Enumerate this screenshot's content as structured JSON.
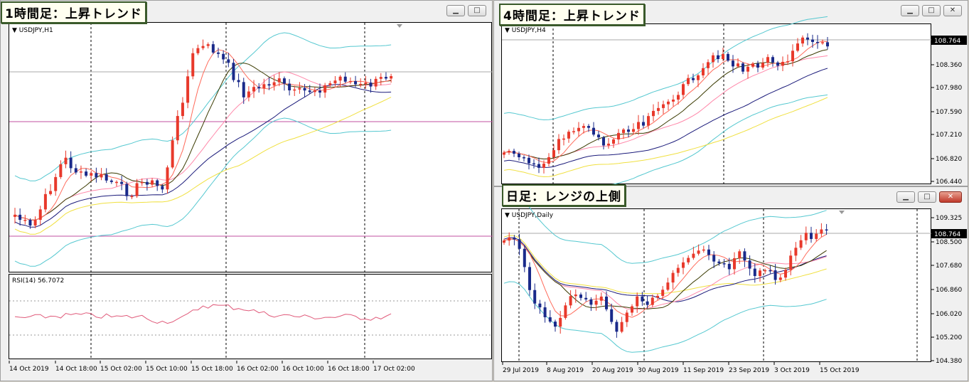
{
  "windows": {
    "h1": {
      "label": "1時間足：上昇トレンド",
      "symbol": "USDJPY,H1",
      "rsi_label": "RSI(14) 56.7072",
      "x_ticks": [
        "14 Oct 2019",
        "14 Oct 18:00",
        "15 Oct 02:00",
        "15 Oct 10:00",
        "15 Oct 18:00",
        "16 Oct 02:00",
        "16 Oct 10:00",
        "16 Oct 18:00",
        "17 Oct 02:00"
      ]
    },
    "h4": {
      "label": "4時間足：上昇トレンド",
      "symbol": "USDJPY,H4",
      "y_ticks": [
        "108.764",
        "108.360",
        "107.980",
        "107.590",
        "107.210",
        "106.820",
        "106.440"
      ],
      "current_price": "108.764"
    },
    "daily": {
      "label": "日足：レンジの上側",
      "symbol": "USDJPY,Daily",
      "y_ticks": [
        "109.325",
        "108.764",
        "108.500",
        "107.680",
        "106.860",
        "106.020",
        "105.200",
        "104.380"
      ],
      "current_price": "108.764",
      "x_ticks": [
        "29 Jul 2019",
        "8 Aug 2019",
        "20 Aug 2019",
        "30 Aug 2019",
        "11 Sep 2019",
        "23 Sep 2019",
        "3 Oct 2019",
        "15 Oct 2019"
      ]
    }
  },
  "icons": {
    "minimize": "minimize-icon",
    "maximize": "maximize-icon",
    "close": "close-icon"
  },
  "colors": {
    "bull": "#e8392b",
    "bear": "#1a2a8a",
    "bb": "#55c8d0",
    "ma_red": "#ff6a5a",
    "ma_pink": "#ff88aa",
    "ma_dark": "#3a3a00",
    "ma_navy": "#1a1a7a",
    "ma_yellow": "#f0e040",
    "rsi": "#e05a7a",
    "hline": "#c050a0"
  }
}
